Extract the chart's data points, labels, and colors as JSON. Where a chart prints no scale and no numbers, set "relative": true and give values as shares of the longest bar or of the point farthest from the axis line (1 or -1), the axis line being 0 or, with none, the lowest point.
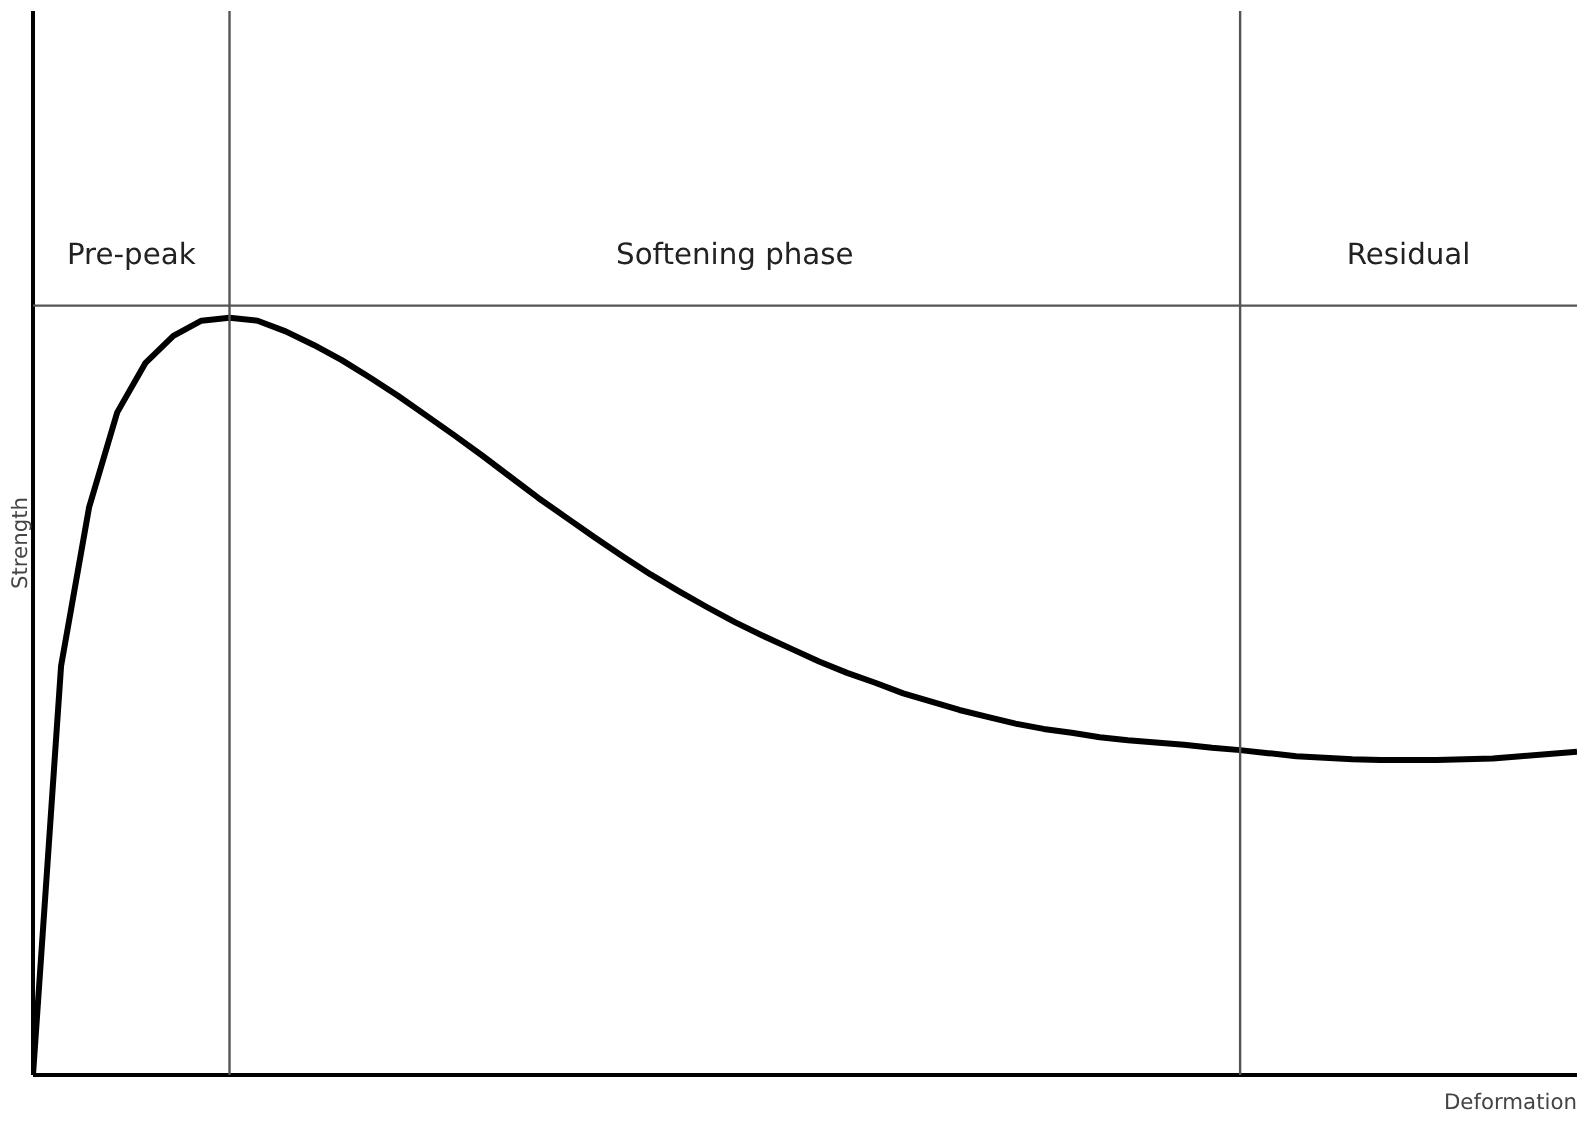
{
  "chart_data": {
    "type": "line",
    "relative": true,
    "xlabel": "Deformation",
    "ylabel": "Strength",
    "marker": "none",
    "line_style": "solid",
    "categories": [
      null,
      null,
      null,
      null,
      null,
      null,
      null,
      null,
      null,
      null,
      null,
      null,
      null,
      null,
      null,
      null,
      null,
      null,
      null,
      null,
      null,
      null,
      null,
      null,
      null,
      null,
      null,
      null,
      null,
      null,
      null,
      null,
      null,
      null,
      null,
      null,
      null,
      null,
      null,
      null,
      null,
      null,
      null,
      null,
      null,
      null,
      null,
      null,
      null,
      null,
      null,
      null,
      null,
      null,
      null,
      null
    ],
    "series": [
      {
        "color": "#000000",
        "values": [
          0,
          0.54,
          0.75,
          0.875,
          0.94,
          0.976,
          0.996,
          1.0,
          0.996,
          0.982,
          0.964,
          0.944,
          0.921,
          0.897,
          0.871,
          0.845,
          0.818,
          0.79,
          0.762,
          0.736,
          0.71,
          0.685,
          0.661,
          0.639,
          0.618,
          0.598,
          0.58,
          0.563,
          0.546,
          0.531,
          0.518,
          0.504,
          0.493,
          0.482,
          0.473,
          0.464,
          0.457,
          0.452,
          0.446,
          0.442,
          0.439,
          0.436,
          0.432,
          0.429,
          0.425,
          0.421,
          0.419,
          0.417,
          0.416,
          0.416,
          0.416,
          0.417,
          0.418,
          0.421,
          0.424,
          0.427
        ]
      }
    ],
    "ref_lines": [
      {
        "axis": "y",
        "value": 1.016,
        "color": "#555555"
      }
    ],
    "annotations": [
      "Pre-peak",
      "Softening phase",
      "Residual"
    ]
  }
}
